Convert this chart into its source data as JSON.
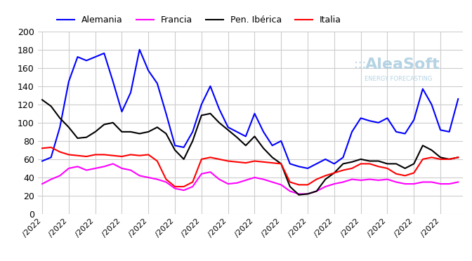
{
  "series": {
    "Alemania": {
      "color": "#0000ff",
      "values": [
        58,
        62,
        95,
        145,
        172,
        168,
        172,
        176,
        145,
        112,
        133,
        180,
        157,
        143,
        110,
        75,
        73,
        90,
        120,
        140,
        115,
        95,
        90,
        85,
        110,
        90,
        75,
        80,
        55,
        52,
        50,
        55,
        60,
        55,
        62,
        90,
        105,
        102,
        100,
        105,
        90,
        88,
        103,
        137,
        120,
        92,
        90,
        126
      ]
    },
    "Francia": {
      "color": "#ff00ff",
      "values": [
        33,
        38,
        42,
        50,
        52,
        48,
        50,
        52,
        55,
        50,
        48,
        42,
        40,
        38,
        35,
        28,
        26,
        30,
        44,
        46,
        38,
        33,
        34,
        37,
        40,
        38,
        35,
        32,
        25,
        22,
        22,
        25,
        30,
        33,
        35,
        38,
        37,
        38,
        37,
        38,
        35,
        33,
        33,
        35,
        35,
        33,
        33,
        35
      ]
    },
    "Pen. Ibérica": {
      "color": "#000000",
      "values": [
        125,
        118,
        105,
        95,
        83,
        84,
        90,
        98,
        100,
        90,
        90,
        88,
        90,
        95,
        88,
        70,
        60,
        80,
        108,
        110,
        100,
        92,
        84,
        75,
        85,
        72,
        62,
        55,
        30,
        21,
        22,
        25,
        38,
        45,
        55,
        57,
        60,
        58,
        58,
        55,
        55,
        50,
        55,
        75,
        70,
        62,
        60,
        62
      ]
    },
    "Italia": {
      "color": "#ff0000",
      "values": [
        72,
        73,
        68,
        65,
        64,
        63,
        65,
        65,
        64,
        63,
        65,
        64,
        65,
        58,
        38,
        30,
        30,
        35,
        60,
        62,
        60,
        58,
        57,
        56,
        58,
        57,
        56,
        55,
        35,
        32,
        32,
        38,
        42,
        45,
        48,
        50,
        55,
        55,
        52,
        50,
        44,
        42,
        45,
        60,
        62,
        60,
        60,
        62
      ]
    }
  },
  "n_points": 48,
  "tick_labels": [
    "/2022",
    "/2022",
    "/2022",
    "/2022",
    "/2022",
    "/2022",
    "/2022",
    "/2022",
    "/2022",
    "/2022",
    "/2022",
    "/2022",
    "/2022",
    "/2022",
    "/2022",
    "/2022"
  ],
  "tick_positions": [
    0,
    3,
    6,
    9,
    12,
    15,
    18,
    21,
    24,
    27,
    30,
    33,
    36,
    39,
    42,
    45
  ],
  "ylim": [
    0,
    200
  ],
  "yticks": [
    0,
    20,
    40,
    60,
    80,
    100,
    120,
    140,
    160,
    180,
    200
  ],
  "grid_color": "#cccccc",
  "bg_color": "#ffffff",
  "watermark_text": "AleaSoft",
  "watermark_sub": "ENERGY FORECASTING"
}
